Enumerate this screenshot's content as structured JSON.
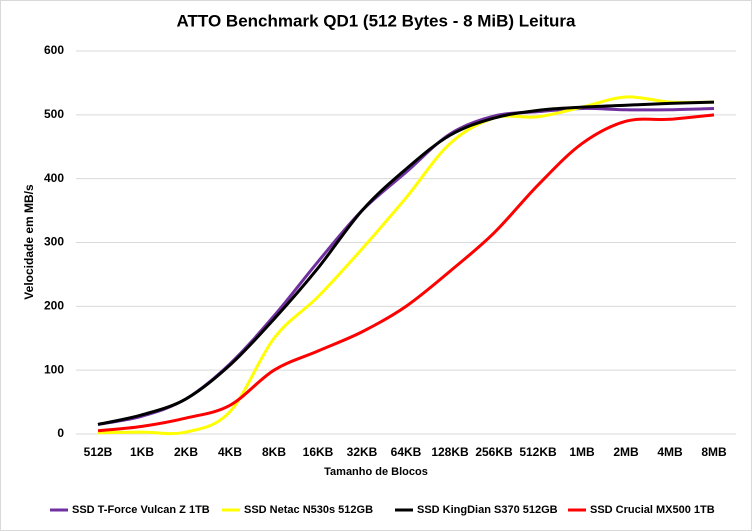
{
  "chart_data": {
    "type": "line",
    "title": "ATTO Benchmark QD1 (512 Bytes - 8 MiB) Leitura",
    "x_label": "Tamanho de Blocos",
    "y_label": "Velocidade em MB/s",
    "categories": [
      "512B",
      "1KB",
      "2KB",
      "4KB",
      "8KB",
      "16KB",
      "32KB",
      "64KB",
      "128KB",
      "256KB",
      "512KB",
      "1MB",
      "2MB",
      "4MB",
      "8MB"
    ],
    "series": [
      {
        "name": "SSD T-Force Vulcan Z 1TB",
        "color": "#7030a0",
        "values": [
          15,
          28,
          55,
          110,
          185,
          270,
          350,
          410,
          470,
          498,
          505,
          510,
          508,
          508,
          510
        ]
      },
      {
        "name": "SSD Netac N530s 512GB",
        "color": "#ffff00",
        "values": [
          2,
          3,
          3,
          35,
          150,
          215,
          290,
          370,
          455,
          495,
          497,
          512,
          528,
          520,
          520
        ]
      },
      {
        "name": "SSD KingDian S370 512GB",
        "color": "#000000",
        "values": [
          15,
          30,
          55,
          108,
          180,
          260,
          350,
          415,
          468,
          495,
          507,
          512,
          515,
          518,
          520
        ]
      },
      {
        "name": "SSD Crucial MX500 1TB",
        "color": "#ff0000",
        "values": [
          5,
          12,
          25,
          45,
          100,
          130,
          160,
          200,
          255,
          315,
          390,
          455,
          490,
          493,
          500
        ]
      }
    ],
    "ylim": [
      0,
      600
    ],
    "yticks": [
      0,
      100,
      200,
      300,
      400,
      500,
      600
    ],
    "grid": true,
    "smooth": true,
    "legend": "bottom"
  }
}
